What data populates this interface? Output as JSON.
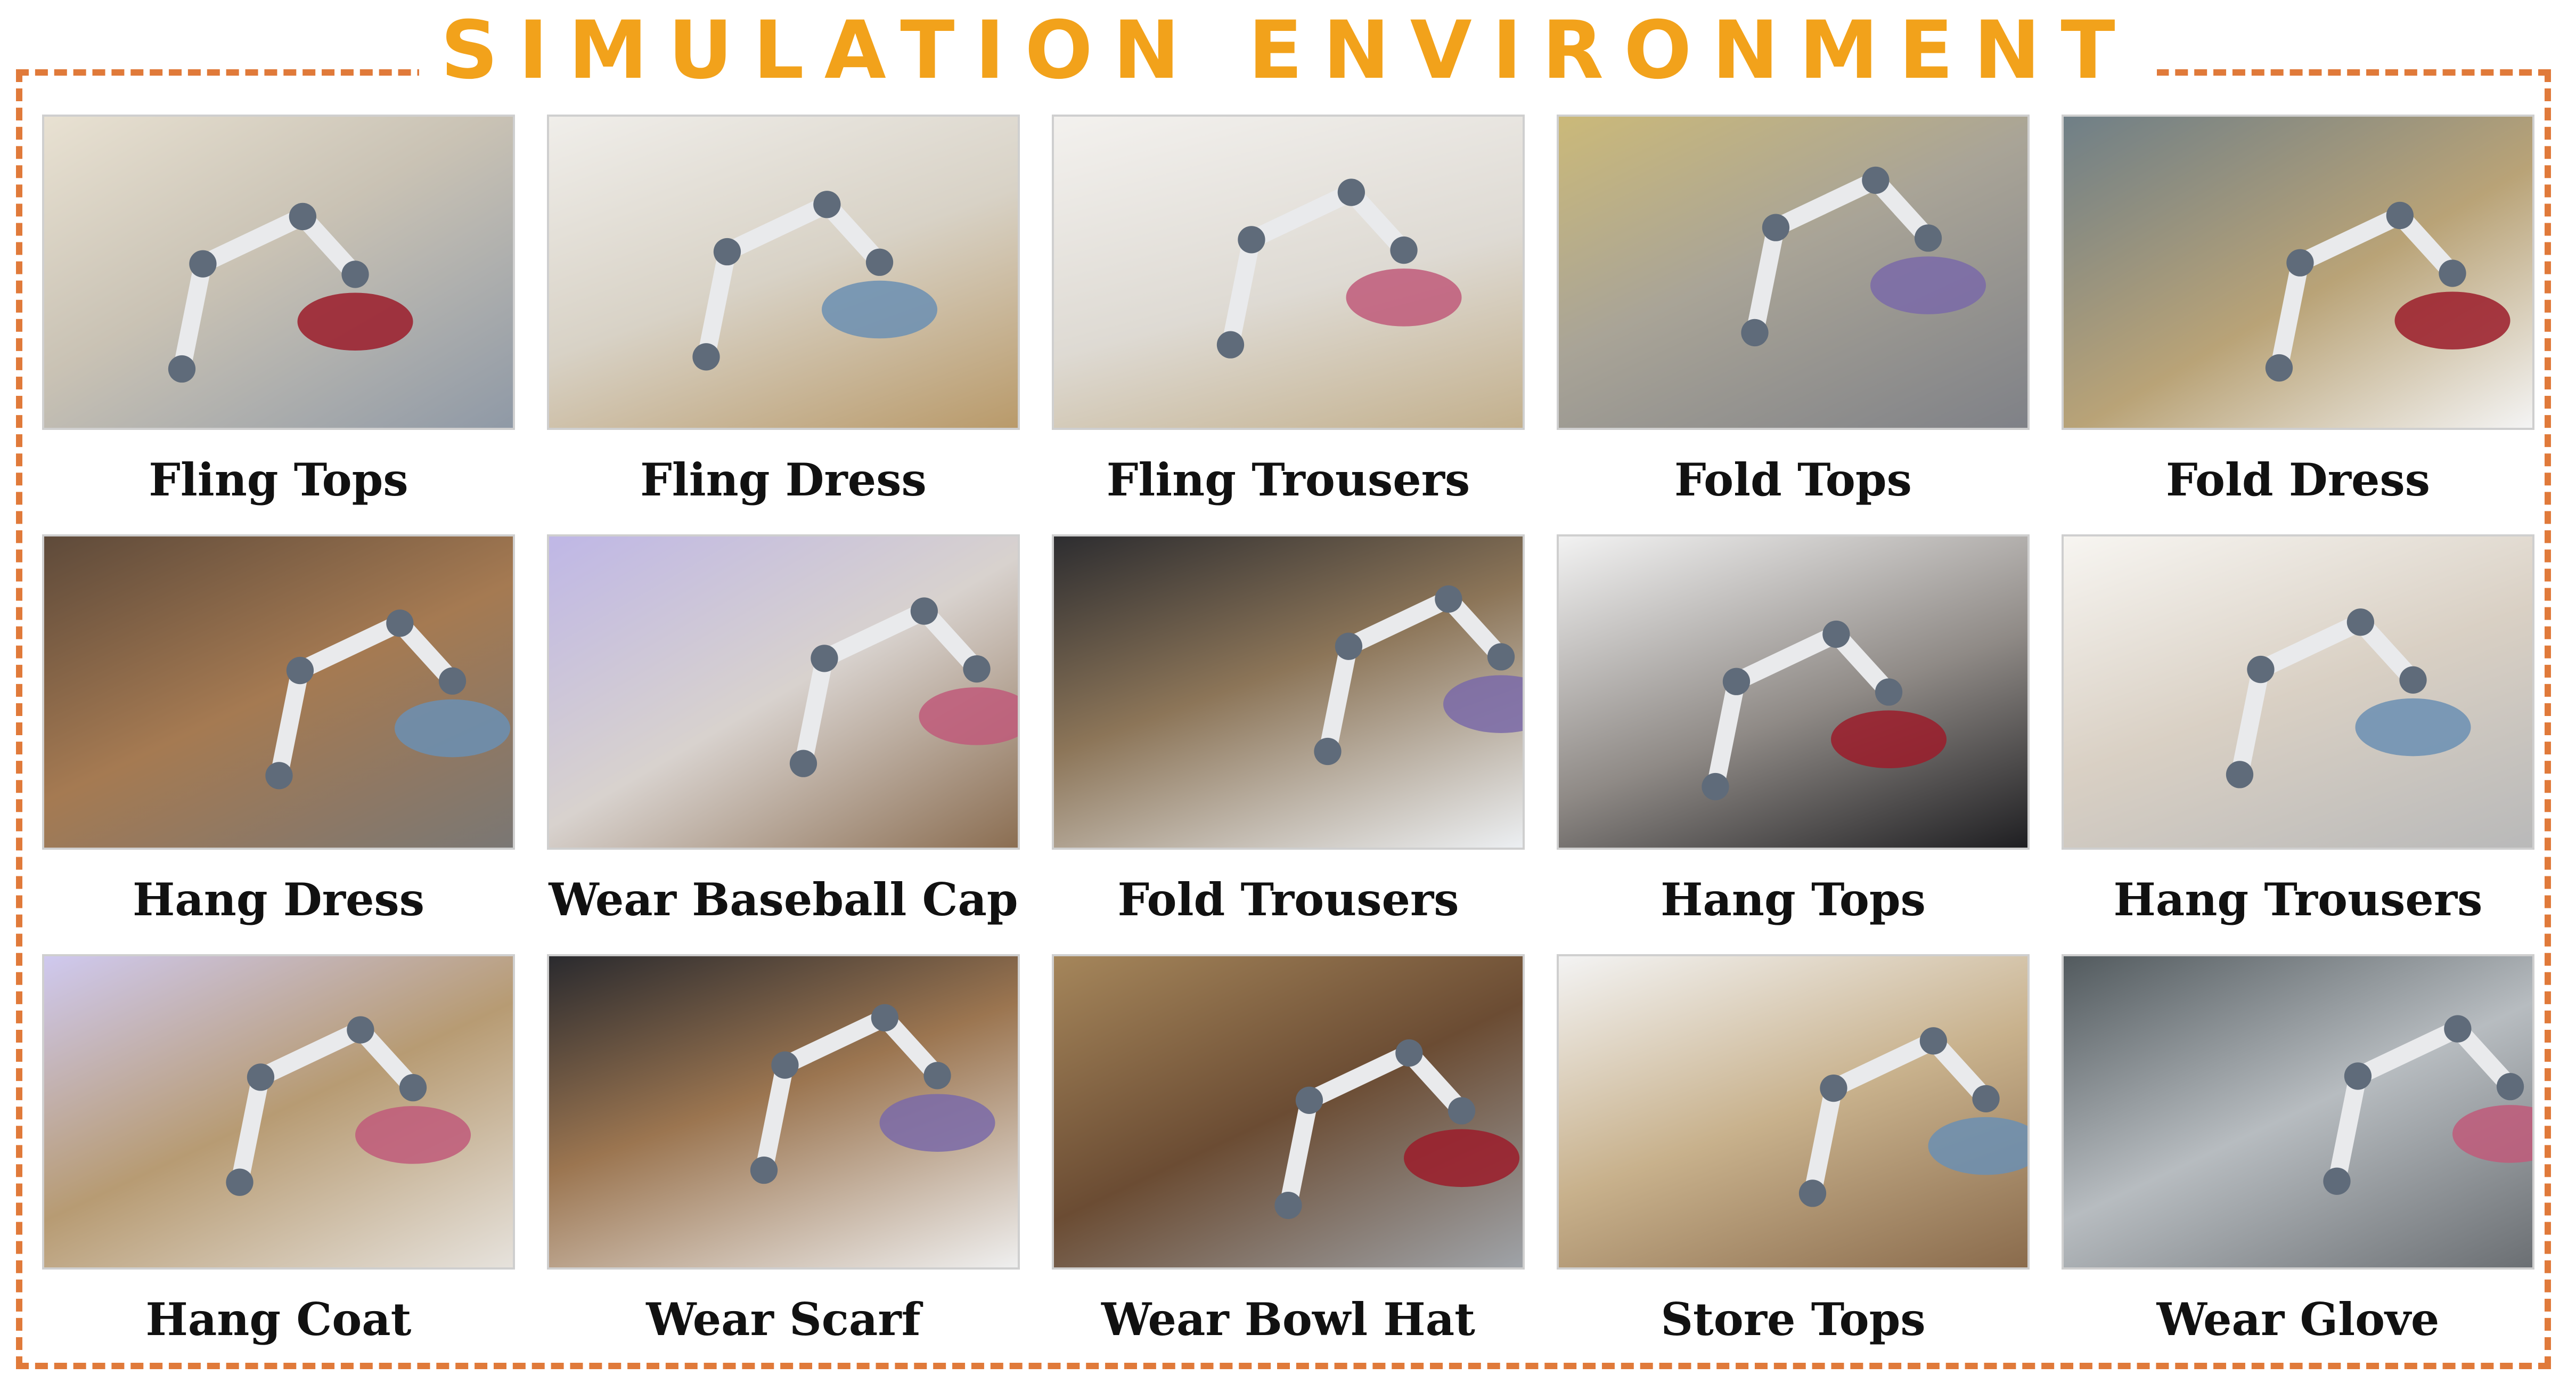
{
  "title": "SIMULATION ENVIRONMENT",
  "colors": {
    "title": "#f2a21b",
    "border": "#e07a3a"
  },
  "tasks": [
    {
      "label": "Fling Tops"
    },
    {
      "label": "Fling Dress"
    },
    {
      "label": "Fling Trousers"
    },
    {
      "label": "Fold Tops"
    },
    {
      "label": "Fold Dress"
    },
    {
      "label": "Hang Dress"
    },
    {
      "label": "Wear Baseball Cap"
    },
    {
      "label": "Fold Trousers"
    },
    {
      "label": "Hang Tops"
    },
    {
      "label": "Hang Trousers"
    },
    {
      "label": "Hang Coat"
    },
    {
      "label": "Wear Scarf"
    },
    {
      "label": "Wear Bowl Hat"
    },
    {
      "label": "Store Tops"
    },
    {
      "label": "Wear Glove"
    }
  ]
}
